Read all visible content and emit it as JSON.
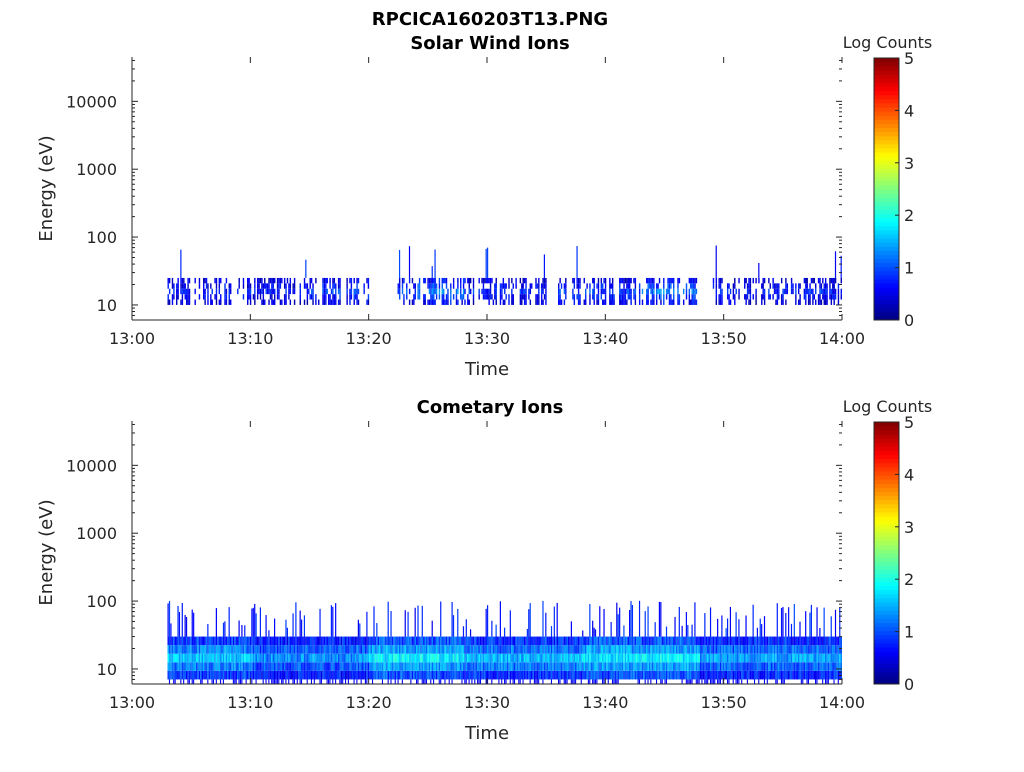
{
  "figure": {
    "title": "RPCICA160203T13.PNG"
  },
  "chart_data": [
    {
      "type": "heatmap",
      "title": "Solar Wind Ions",
      "xlabel": "Time",
      "ylabel": "Energy (eV)",
      "x_ticks": [
        "13:00",
        "13:10",
        "13:20",
        "13:30",
        "13:40",
        "13:50",
        "14:00"
      ],
      "x_range": [
        "13:00",
        "14:00"
      ],
      "y_ticks": [
        "10",
        "100",
        "1000",
        "10000"
      ],
      "y_scale": "log",
      "y_range": [
        6,
        45000
      ],
      "colorbar": {
        "label": "Log Counts",
        "ticks": [
          "0",
          "1",
          "2",
          "3",
          "4",
          "5"
        ],
        "range": [
          0,
          5
        ],
        "colormap": "jet"
      },
      "data_start": "13:03",
      "data_end": "14:00",
      "energy_band": [
        10,
        25
      ],
      "segments": [
        {
          "start": "13:03",
          "end": "13:15",
          "level": 0.7
        },
        {
          "start": "13:15",
          "end": "13:20",
          "level": 0.9
        },
        {
          "start": "13:22",
          "end": "13:24",
          "level": 1.0
        },
        {
          "start": "13:24",
          "end": "13:28",
          "level": 1.2
        },
        {
          "start": "13:28",
          "end": "13:35",
          "level": 0.8
        },
        {
          "start": "13:36",
          "end": "13:43",
          "level": 0.9
        },
        {
          "start": "13:43",
          "end": "13:48",
          "level": 1.2
        },
        {
          "start": "13:49",
          "end": "14:00",
          "level": 0.7
        }
      ]
    },
    {
      "type": "heatmap",
      "title": "Cometary Ions",
      "xlabel": "Time",
      "ylabel": "Energy (eV)",
      "x_ticks": [
        "13:00",
        "13:10",
        "13:20",
        "13:30",
        "13:40",
        "13:50",
        "14:00"
      ],
      "x_range": [
        "13:00",
        "14:00"
      ],
      "y_ticks": [
        "10",
        "100",
        "1000",
        "10000"
      ],
      "y_scale": "log",
      "y_range": [
        6,
        45000
      ],
      "colorbar": {
        "label": "Log Counts",
        "ticks": [
          "0",
          "1",
          "2",
          "3",
          "4",
          "5"
        ],
        "range": [
          0,
          5
        ],
        "colormap": "jet"
      },
      "data_start": "13:03",
      "data_end": "14:00",
      "energy_band": [
        7,
        30
      ],
      "segments": [
        {
          "start": "13:03",
          "end": "13:10",
          "level": 1.6
        },
        {
          "start": "13:10",
          "end": "13:20",
          "level": 1.3
        },
        {
          "start": "13:20",
          "end": "13:28",
          "level": 1.8
        },
        {
          "start": "13:28",
          "end": "13:38",
          "level": 1.5
        },
        {
          "start": "13:38",
          "end": "13:48",
          "level": 1.8
        },
        {
          "start": "13:48",
          "end": "14:00",
          "level": 1.4
        }
      ]
    }
  ]
}
